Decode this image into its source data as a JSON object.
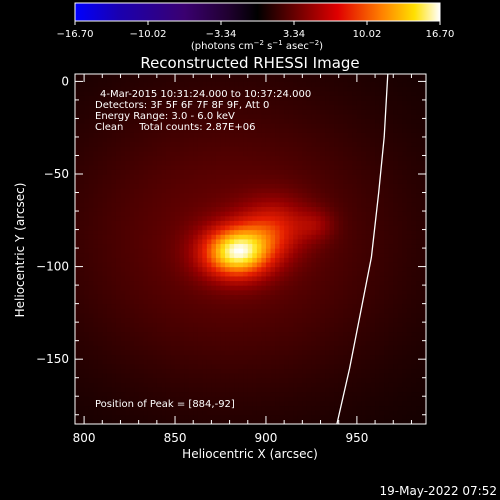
{
  "chart_data": {
    "type": "heatmap",
    "title": "Reconstructed RHESSI Image",
    "xlabel": "Heliocentric X (arcsec)",
    "ylabel": "Heliocentric Y (arcsec)",
    "xlim": [
      795,
      988
    ],
    "ylim": [
      -185,
      4
    ],
    "x_ticks": [
      800,
      850,
      900,
      950
    ],
    "y_ticks": [
      0,
      -50,
      -100,
      -150
    ],
    "colorbar": {
      "range": [
        -16.7,
        16.7
      ],
      "ticks": [
        "-16.70",
        "-10.02",
        "-3.34",
        "3.34",
        "10.02",
        "16.70"
      ],
      "tick_values": [
        -16.7,
        -10.02,
        -3.34,
        3.34,
        10.02,
        16.7
      ],
      "unit_label": "(photons cm",
      "colormap": "rhessi-blue-black-red-yellow-white"
    },
    "annotations": {
      "time_range": "4-Mar-2015 10:31:24.000  to 10:37:24.000",
      "detectors": "Detectors: 3F 5F 6F 7F 8F 9F, Att 0",
      "energy_range": "Energy Range: 3.0 - 6.0 keV",
      "clean_counts": "Clean     Total counts: 2.87E+06",
      "peak": "Position of Peak = [884,-92]"
    },
    "peak": {
      "x": 884,
      "y": -92,
      "value": 16.7
    },
    "sources": [
      {
        "x": 884,
        "y": -92,
        "sigma_x": 14,
        "sigma_y": 10,
        "amplitude": 9.0
      },
      {
        "x": 905,
        "y": -78,
        "sigma_x": 14,
        "sigma_y": 11,
        "amplitude": 3.5
      },
      {
        "x": 928,
        "y": -77,
        "sigma_x": 7,
        "sigma_y": 6,
        "amplitude": 1.6
      },
      {
        "x": 880,
        "y": -85,
        "sigma_x": 70,
        "sigma_y": 60,
        "amplitude": 2.6
      }
    ],
    "background_level": 0.4,
    "limb_points": [
      [
        967,
        4
      ],
      [
        965,
        -30
      ],
      [
        962,
        -60
      ],
      [
        958,
        -95
      ],
      [
        952,
        -125
      ],
      [
        946,
        -155
      ],
      [
        939,
        -185
      ]
    ],
    "footer_timestamp": "19-May-2022 07:52"
  }
}
